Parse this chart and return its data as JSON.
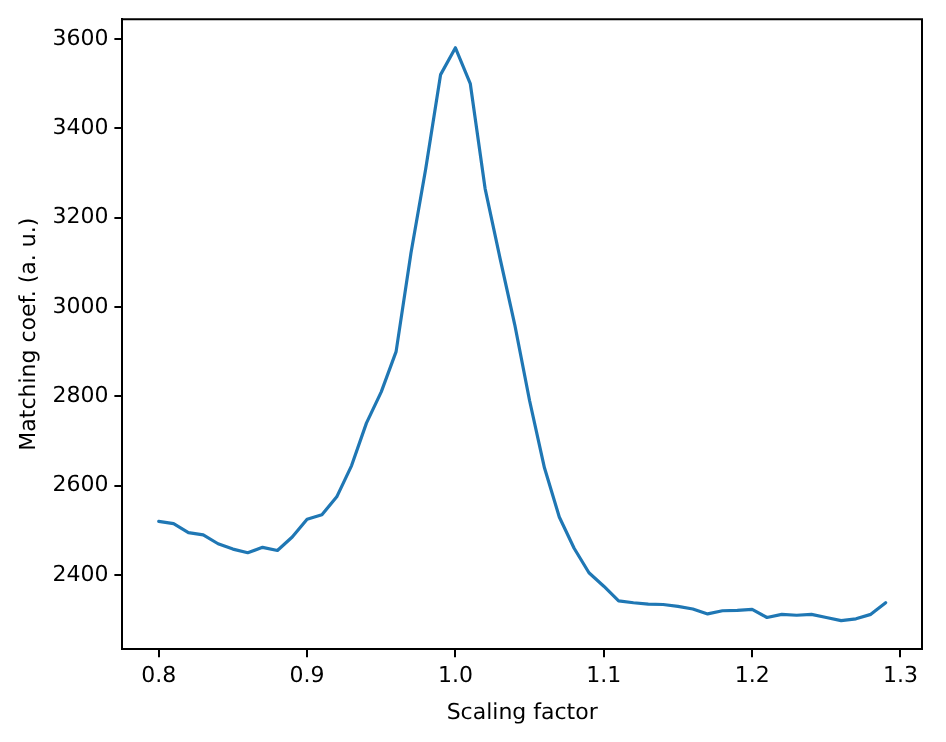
{
  "chart_data": {
    "type": "line",
    "xlabel": "Scaling factor",
    "ylabel": "Matching coef. (a. u.)",
    "x": [
      0.8,
      0.81,
      0.82,
      0.83,
      0.84,
      0.85,
      0.86,
      0.87,
      0.88,
      0.89,
      0.9,
      0.91,
      0.92,
      0.93,
      0.94,
      0.95,
      0.96,
      0.97,
      0.98,
      0.99,
      1.0,
      1.01,
      1.02,
      1.03,
      1.04,
      1.05,
      1.06,
      1.07,
      1.08,
      1.09,
      1.1,
      1.11,
      1.12,
      1.13,
      1.14,
      1.15,
      1.16,
      1.17,
      1.18,
      1.19,
      1.2,
      1.21,
      1.22,
      1.23,
      1.24,
      1.25,
      1.26,
      1.27,
      1.28,
      1.29
    ],
    "series": [
      {
        "color": "#1f77b4",
        "values": [
          2520,
          2515,
          2495,
          2490,
          2470,
          2458,
          2450,
          2462,
          2455,
          2485,
          2525,
          2535,
          2575,
          2645,
          2740,
          2810,
          2900,
          3120,
          3310,
          3520,
          3580,
          3500,
          3265,
          3110,
          2960,
          2790,
          2640,
          2530,
          2460,
          2405,
          2375,
          2342,
          2338,
          2335,
          2334,
          2330,
          2324,
          2313,
          2320,
          2321,
          2323,
          2305,
          2312,
          2310,
          2312,
          2305,
          2298,
          2302,
          2312,
          2338
        ]
      }
    ],
    "xlim": [
      0.7755,
      1.3145
    ],
    "xticks": [
      0.8,
      0.9,
      {
        "value": 1,
        "label": "1.0"
      },
      1.1,
      1.2,
      1.3
    ],
    "ylim": [
      2234,
      3644
    ],
    "yticks": [
      2400,
      2600,
      2800,
      3000,
      3200,
      3400,
      3600
    ],
    "grid": false,
    "legend": false,
    "marker": "none",
    "line_style": "solid"
  }
}
